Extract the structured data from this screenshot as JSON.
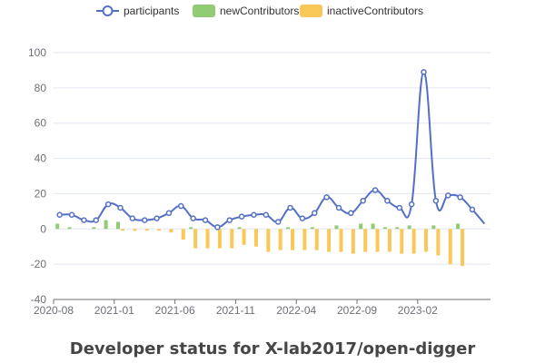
{
  "chart_data": {
    "type": "bar",
    "title": "Developer status for X-lab2017/open-digger",
    "legend": {
      "placement": "top-center",
      "items": [
        "participants",
        "newContributors",
        "inactiveContributors"
      ]
    },
    "colors": {
      "participants": "#5470c6",
      "newContributors": "#91cc75",
      "inactiveContributors": "#fac858",
      "grid": "#e0e6f1",
      "axis": "#6e7079"
    },
    "ylim": [
      -40,
      100
    ],
    "yticks": [
      -40,
      -20,
      0,
      20,
      40,
      60,
      80,
      100
    ],
    "grid": true,
    "categories": [
      "2020-08",
      "2020-09",
      "2020-10",
      "2020-11",
      "2020-12",
      "2021-01",
      "2021-02",
      "2021-03",
      "2021-04",
      "2021-05",
      "2021-06",
      "2021-07",
      "2021-08",
      "2021-09",
      "2021-10",
      "2021-11",
      "2021-12",
      "2022-01",
      "2022-02",
      "2022-03",
      "2022-04",
      "2022-05",
      "2022-06",
      "2022-07",
      "2022-08",
      "2022-09",
      "2022-10",
      "2022-11",
      "2022-12",
      "2023-01",
      "2023-02",
      "2023-03",
      "2023-04",
      "2023-05",
      "2023-06",
      "2023-07"
    ],
    "xtick_labels": [
      "2020-08",
      "2021-01",
      "2021-06",
      "2021-11",
      "2022-04",
      "2022-09",
      "2023-02"
    ],
    "series": [
      {
        "name": "participants",
        "type": "line",
        "values": [
          8,
          8,
          5,
          5,
          14,
          12,
          6,
          5,
          6,
          9,
          13,
          6,
          5,
          1,
          5,
          7,
          8,
          8,
          4,
          12,
          6,
          9,
          18,
          12,
          9,
          16,
          22,
          16,
          12,
          14,
          89,
          16,
          19,
          18,
          11,
          3
        ]
      },
      {
        "name": "newContributors",
        "type": "bar",
        "values": [
          3,
          1,
          0,
          1,
          5,
          4,
          0,
          0,
          0,
          0,
          0,
          1,
          0,
          0,
          0,
          1,
          0,
          0,
          0,
          1,
          0,
          1,
          0,
          2,
          0,
          3,
          3,
          1,
          1,
          2,
          0,
          2,
          0,
          3,
          0,
          0
        ]
      },
      {
        "name": "inactiveContributors",
        "type": "bar",
        "values": [
          0,
          0,
          0,
          0,
          0,
          -1,
          -1,
          -1,
          -1,
          -2,
          -6,
          -11,
          -11,
          -11,
          -11,
          -9,
          -10,
          -13,
          -12,
          -12,
          -12,
          -12,
          -13,
          -13,
          -14,
          -13,
          -13,
          -13,
          -14,
          -14,
          -13,
          -15,
          -20,
          -21,
          0,
          0
        ]
      }
    ]
  }
}
